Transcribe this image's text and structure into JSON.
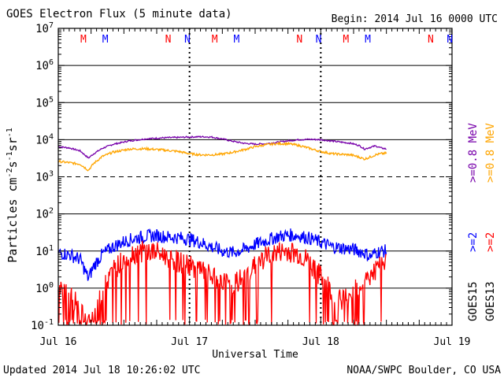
{
  "chart_data": {
    "type": "line",
    "title": "GOES Electron Flux (5 minute data)",
    "begin_label": "Begin: 2014 Jul 16 0000 UTC",
    "xlabel": "Universal Time",
    "ylabel": "Particles cm-2s-1sr-1",
    "ylabel_parts": {
      "base": "Particles cm",
      "exp1": "-2",
      "mid1": "s",
      "exp2": "-1",
      "mid2": "sr",
      "exp3": "-1"
    },
    "yscale": "log",
    "ylim": [
      0.1,
      10000000
    ],
    "xlim": [
      0,
      72
    ],
    "x_unit": "hours since 2014 Jul 16 0000 UTC",
    "y_ticks": [
      {
        "value": 0.1,
        "base": "10",
        "exp": "-1"
      },
      {
        "value": 1,
        "base": "10",
        "exp": "0"
      },
      {
        "value": 10,
        "base": "10",
        "exp": "1"
      },
      {
        "value": 100,
        "base": "10",
        "exp": "2"
      },
      {
        "value": 1000,
        "base": "10",
        "exp": "3"
      },
      {
        "value": 10000,
        "base": "10",
        "exp": "4"
      },
      {
        "value": 100000,
        "base": "10",
        "exp": "5"
      },
      {
        "value": 1000000,
        "base": "10",
        "exp": "6"
      },
      {
        "value": 10000000,
        "base": "10",
        "exp": "7"
      }
    ],
    "x_ticks": [
      {
        "value": 0,
        "label": "Jul 16"
      },
      {
        "value": 24,
        "label": "Jul 17"
      },
      {
        "value": 48,
        "label": "Jul 18"
      },
      {
        "value": 72,
        "label": "Jul 19"
      }
    ],
    "threshold": 1000,
    "markers": [
      {
        "x": 4.6,
        "letter": "M",
        "color": "#ff0000"
      },
      {
        "x": 8.6,
        "letter": "M",
        "color": "#0000ff"
      },
      {
        "x": 20.1,
        "letter": "N",
        "color": "#ff0000"
      },
      {
        "x": 23.6,
        "letter": "N",
        "color": "#0000ff"
      },
      {
        "x": 28.6,
        "letter": "M",
        "color": "#ff0000"
      },
      {
        "x": 32.6,
        "letter": "M",
        "color": "#0000ff"
      },
      {
        "x": 44.1,
        "letter": "N",
        "color": "#ff0000"
      },
      {
        "x": 47.6,
        "letter": "N",
        "color": "#0000ff"
      },
      {
        "x": 52.6,
        "letter": "M",
        "color": "#ff0000"
      },
      {
        "x": 56.6,
        "letter": "M",
        "color": "#0000ff"
      },
      {
        "x": 68.1,
        "letter": "N",
        "color": "#ff0000"
      },
      {
        "x": 71.6,
        "letter": "N",
        "color": "#0000ff"
      }
    ],
    "legend": {
      "placement": "right",
      "entries": [
        {
          "sat": "GOES15",
          "label": ">=2",
          "color": "#0000ff"
        },
        {
          "sat": "GOES15",
          "label": ">=0.8 MeV",
          "color": "#7700aa"
        },
        {
          "sat": "GOES13",
          "label": ">=2",
          "color": "#ff0000"
        },
        {
          "sat": "GOES13",
          "label": ">=0.8 MeV",
          "color": "#ffa500"
        }
      ],
      "satellites": [
        "GOES15",
        "GOES13"
      ]
    },
    "series": [
      {
        "color": "#7700aa",
        "noise": 0.02,
        "points": [
          [
            0,
            6500
          ],
          [
            2,
            6000
          ],
          [
            4,
            5000
          ],
          [
            5.5,
            3200
          ],
          [
            6.5,
            4200
          ],
          [
            8,
            5800
          ],
          [
            10,
            7500
          ],
          [
            13,
            9300
          ],
          [
            16,
            10500
          ],
          [
            19,
            11200
          ],
          [
            22,
            11500
          ],
          [
            24,
            11800
          ],
          [
            26,
            12000
          ],
          [
            28,
            11800
          ],
          [
            30,
            10500
          ],
          [
            32,
            9000
          ],
          [
            34,
            8000
          ],
          [
            36,
            7600
          ],
          [
            38,
            7800
          ],
          [
            40,
            8500
          ],
          [
            42,
            9300
          ],
          [
            44,
            10000
          ],
          [
            46,
            10200
          ],
          [
            48,
            10000
          ],
          [
            50,
            9200
          ],
          [
            52,
            8500
          ],
          [
            53.5,
            8000
          ],
          [
            55,
            7000
          ],
          [
            56,
            5600
          ],
          [
            57,
            6200
          ],
          [
            58,
            6800
          ],
          [
            59,
            6000
          ],
          [
            60,
            5600
          ]
        ]
      },
      {
        "color": "#ffa500",
        "noise": 0.03,
        "points": [
          [
            0,
            2600
          ],
          [
            2,
            2400
          ],
          [
            4,
            2200
          ],
          [
            5.5,
            1500
          ],
          [
            6.5,
            2300
          ],
          [
            8,
            3500
          ],
          [
            10,
            4600
          ],
          [
            13,
            5600
          ],
          [
            16,
            5700
          ],
          [
            19,
            5300
          ],
          [
            22,
            4800
          ],
          [
            24,
            4200
          ],
          [
            26,
            3900
          ],
          [
            28,
            3900
          ],
          [
            30,
            4100
          ],
          [
            32,
            4600
          ],
          [
            34,
            5400
          ],
          [
            36,
            6500
          ],
          [
            38,
            7300
          ],
          [
            40,
            7800
          ],
          [
            42,
            7800
          ],
          [
            44,
            7000
          ],
          [
            46,
            5800
          ],
          [
            48,
            4800
          ],
          [
            50,
            4200
          ],
          [
            52,
            4000
          ],
          [
            53.5,
            3900
          ],
          [
            55,
            3400
          ],
          [
            56,
            3000
          ],
          [
            57,
            3400
          ],
          [
            58,
            3900
          ],
          [
            59,
            4200
          ],
          [
            60,
            4300
          ]
        ]
      },
      {
        "color": "#0000ff",
        "noise": 0.18,
        "points": [
          [
            0,
            9
          ],
          [
            2,
            8
          ],
          [
            4,
            6
          ],
          [
            5.5,
            1.8
          ],
          [
            6.5,
            4
          ],
          [
            8,
            8
          ],
          [
            10,
            13
          ],
          [
            12,
            18
          ],
          [
            14,
            22
          ],
          [
            16,
            25
          ],
          [
            18,
            26
          ],
          [
            20,
            24
          ],
          [
            22,
            23
          ],
          [
            24,
            21
          ],
          [
            26,
            17
          ],
          [
            28,
            13
          ],
          [
            30,
            10
          ],
          [
            32,
            9
          ],
          [
            34,
            11
          ],
          [
            36,
            15
          ],
          [
            38,
            19
          ],
          [
            40,
            24
          ],
          [
            42,
            27
          ],
          [
            44,
            26
          ],
          [
            46,
            22
          ],
          [
            48,
            17
          ],
          [
            50,
            13
          ],
          [
            52,
            12
          ],
          [
            54,
            11
          ],
          [
            56,
            9
          ],
          [
            57,
            7
          ],
          [
            58,
            9
          ],
          [
            59,
            10
          ],
          [
            60,
            10
          ]
        ]
      },
      {
        "color": "#ff0000",
        "noise": 0.3,
        "dips": true,
        "points": [
          [
            0,
            1
          ],
          [
            2,
            0.6
          ],
          [
            4,
            0.3
          ],
          [
            5.5,
            0.1
          ],
          [
            7,
            0.3
          ],
          [
            8,
            0.8
          ],
          [
            9,
            1.5
          ],
          [
            10,
            3
          ],
          [
            12,
            6
          ],
          [
            14,
            9
          ],
          [
            16,
            10
          ],
          [
            18,
            9
          ],
          [
            20,
            7
          ],
          [
            22,
            5
          ],
          [
            24,
            4
          ],
          [
            26,
            3
          ],
          [
            28,
            2
          ],
          [
            30,
            1.5
          ],
          [
            32,
            1.2
          ],
          [
            34,
            2
          ],
          [
            36,
            4
          ],
          [
            38,
            7
          ],
          [
            40,
            9
          ],
          [
            42,
            10
          ],
          [
            44,
            8
          ],
          [
            46,
            5
          ],
          [
            48,
            2
          ],
          [
            50,
            0.8
          ],
          [
            52,
            0.5
          ],
          [
            54,
            0.9
          ],
          [
            56,
            1.5
          ],
          [
            58,
            3
          ],
          [
            60,
            5
          ]
        ]
      }
    ]
  },
  "footer": {
    "updated": "Updated 2014 Jul 18 10:26:02 UTC",
    "credit": "NOAA/SWPC Boulder, CO USA"
  }
}
